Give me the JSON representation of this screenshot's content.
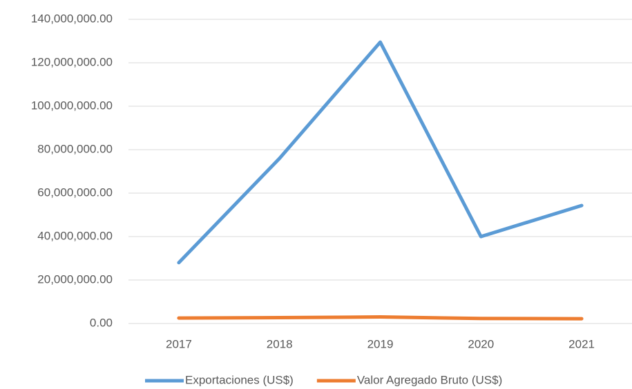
{
  "chart_data": {
    "type": "line",
    "categories": [
      "2017",
      "2018",
      "2019",
      "2020",
      "2021"
    ],
    "series": [
      {
        "name": "Exportaciones (US$)",
        "color": "#5b9bd5",
        "values": [
          28000000,
          76000000,
          129500000,
          40000000,
          54300000
        ]
      },
      {
        "name": "Valor Agregado Bruto (US$)",
        "color": "#ed7d31",
        "values": [
          2500000,
          2700000,
          3000000,
          2300000,
          2200000
        ]
      }
    ],
    "ylim": [
      0,
      140000000
    ],
    "yticks": [
      {
        "value": 0,
        "label": "0.00"
      },
      {
        "value": 20000000,
        "label": "20,000,000.00"
      },
      {
        "value": 40000000,
        "label": "40,000,000.00"
      },
      {
        "value": 60000000,
        "label": "60,000,000.00"
      },
      {
        "value": 80000000,
        "label": "80,000,000.00"
      },
      {
        "value": 100000000,
        "label": "100,000,000.00"
      },
      {
        "value": 120000000,
        "label": "120,000,000.00"
      },
      {
        "value": 140000000,
        "label": "140,000,000.00"
      }
    ],
    "grid": true,
    "legend": "bottom"
  }
}
